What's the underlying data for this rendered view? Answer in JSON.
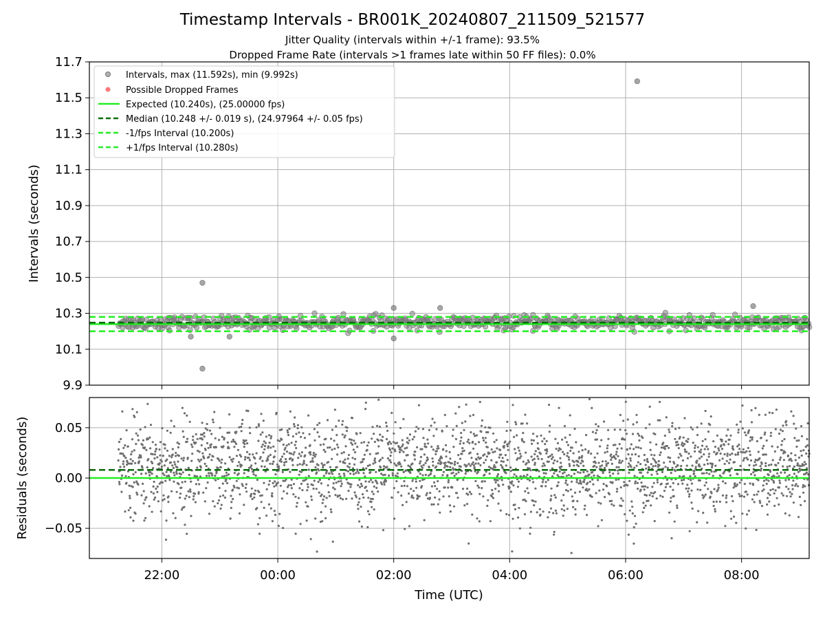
{
  "chart_data": [
    {
      "type": "scatter",
      "title": "Timestamp Intervals - BR001K_20240807_211509_521577",
      "subtitle_1": "Jitter Quality (intervals within +/-1 frame): 93.5%",
      "subtitle_2": "Dropped Frame Rate (intervals >1 frames late within 50 FF files): 0.0%",
      "xlabel": "",
      "ylabel": "Intervals (seconds)",
      "ylim": [
        9.9,
        11.7
      ],
      "yticks": [
        "9.9",
        "10.1",
        "10.3",
        "10.5",
        "10.7",
        "10.9",
        "11.1",
        "11.3",
        "11.5",
        "11.7"
      ],
      "x_time_range": [
        "20:45",
        "09:10"
      ],
      "grid": true,
      "legend_placement": "top-left",
      "colors": {
        "intervals": "#808080",
        "dropped": "#ff4040",
        "expected": "#22ee22",
        "median": "#0a6a0a",
        "fps_bounds": "#22ee22",
        "grid": "#b0b0b0"
      },
      "legend": [
        "Intervals, max (11.592s), min (9.992s)",
        "Possible Dropped Frames",
        "Expected (10.240s), (25.00000 fps)",
        "Median (10.248 +/- 0.019 s), (24.97964 +/- 0.05 fps)",
        "-1/fps Interval (10.200s)",
        "+1/fps Interval (10.280s)"
      ],
      "series": [
        {
          "name": "Intervals, max (11.592s), min (9.992s)",
          "x_start": "21:15",
          "x_end": "09:10",
          "typical_range": [
            10.2,
            10.29
          ],
          "center": 10.248,
          "outliers": [
            {
              "x": "06:12",
              "y": 11.592
            },
            {
              "x": "22:42",
              "y": 10.47
            },
            {
              "x": "22:42",
              "y": 9.992
            },
            {
              "x": "08:12",
              "y": 10.34
            },
            {
              "x": "02:00",
              "y": 10.33
            },
            {
              "x": "02:48",
              "y": 10.33
            },
            {
              "x": "02:00",
              "y": 10.16
            },
            {
              "x": "22:30",
              "y": 10.17
            },
            {
              "x": "23:10",
              "y": 10.17
            }
          ]
        },
        {
          "name": "Expected (10.240s), (25.00000 fps)",
          "y": 10.24
        },
        {
          "name": "Median (10.248 +/- 0.019 s), (24.97964 +/- 0.05 fps)",
          "y": 10.248
        },
        {
          "name": "-1/fps Interval (10.200s)",
          "y": 10.2
        },
        {
          "name": "+1/fps Interval (10.280s)",
          "y": 10.28
        }
      ]
    },
    {
      "type": "scatter",
      "xlabel": "Time (UTC)",
      "ylabel": "Residuals (seconds)",
      "ylim": [
        -0.08,
        0.08
      ],
      "yticks": [
        {
          "value": -0.05,
          "label": "−0.05"
        },
        {
          "value": 0.0,
          "label": "0.00"
        },
        {
          "value": 0.05,
          "label": "0.05"
        }
      ],
      "xticks": [
        "22:00",
        "00:00",
        "02:00",
        "04:00",
        "06:00",
        "08:00"
      ],
      "x_time_range": [
        "20:45",
        "09:10"
      ],
      "grid": true,
      "series": [
        {
          "name": "Residuals",
          "x_start": "21:15",
          "x_end": "09:10",
          "spread_sd": 0.025,
          "center": 0.01
        },
        {
          "name": "Expected",
          "y": 0.0
        },
        {
          "name": "Median",
          "y": 0.008
        }
      ]
    }
  ]
}
